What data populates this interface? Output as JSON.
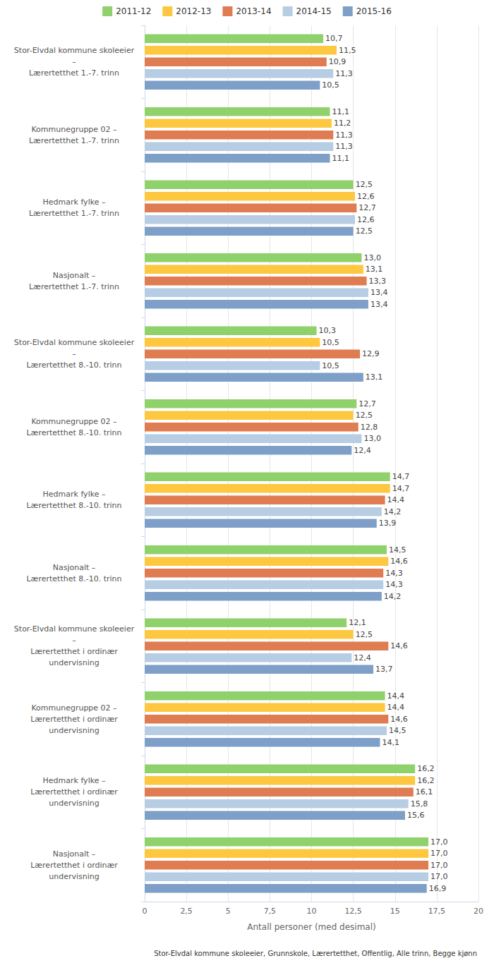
{
  "chart_data": {
    "type": "bar",
    "orientation": "horizontal",
    "grid": true,
    "legend": "top",
    "data_labels": true,
    "x_label": "Antall personer (med desimal)",
    "footnote": "Stor-Elvdal kommune skoleeier, Grunnskole, Lærertetthet, Offentlig, Alle trinn, Begge kjønn",
    "categories": [
      "Stor-Elvdal kommune skoleeier\n–\nLærertetthet 1.-7. trinn",
      "Kommunegruppe 02 –\nLærertetthet 1.-7. trinn",
      "Hedmark fylke –\nLærertetthet 1.-7. trinn",
      "Nasjonalt –\nLærertetthet 1.-7. trinn",
      "Stor-Elvdal kommune skoleeier\n–\nLærertetthet 8.-10. trinn",
      "Kommunegruppe 02 –\nLærertetthet 8.-10. trinn",
      "Hedmark fylke –\nLærertetthet 8.-10. trinn",
      "Nasjonalt –\nLærertetthet 8.-10. trinn",
      "Stor-Elvdal kommune skoleeier\n–\nLærertetthet i ordinær\nundervisning",
      "Kommunegruppe 02 –\nLærertetthet i ordinær\nundervisning",
      "Hedmark fylke –\nLærertetthet i ordinær\nundervisning",
      "Nasjonalt –\nLærertetthet i ordinær\nundervisning"
    ],
    "xlim": [
      0,
      20
    ],
    "xticks": [
      0,
      {
        "value": 2.5,
        "label": "2,5"
      },
      5,
      {
        "value": 7.5,
        "label": "7,5"
      },
      10,
      {
        "value": 12.5,
        "label": "12,5"
      },
      15,
      {
        "value": 17.5,
        "label": "17,5"
      },
      20
    ],
    "series": [
      {
        "name": "2011-12",
        "color": "#8fd16a",
        "values": [
          10.7,
          11.1,
          12.5,
          13.0,
          10.3,
          12.7,
          14.7,
          14.5,
          12.1,
          14.4,
          16.2,
          17.0
        ],
        "value_labels": [
          "10,7",
          "11,1",
          "12,5",
          "13,0",
          "10,3",
          "12,7",
          "14,7",
          "14,5",
          "12,1",
          "14,4",
          "16,2",
          "17,0"
        ]
      },
      {
        "name": "2012-13",
        "color": "#fdc73f",
        "values": [
          11.5,
          11.2,
          12.6,
          13.1,
          10.5,
          12.5,
          14.7,
          14.6,
          12.5,
          14.4,
          16.2,
          17.0
        ],
        "value_labels": [
          "11,5",
          "11,2",
          "12,6",
          "13,1",
          "10,5",
          "12,5",
          "14,7",
          "14,6",
          "12,5",
          "14,4",
          "16,2",
          "17,0"
        ]
      },
      {
        "name": "2013-14",
        "color": "#df7c52",
        "values": [
          10.9,
          11.3,
          12.7,
          13.3,
          12.9,
          12.8,
          14.4,
          14.3,
          14.6,
          14.6,
          16.1,
          17.0
        ],
        "value_labels": [
          "10,9",
          "11,3",
          "12,7",
          "13,3",
          "12,9",
          "12,8",
          "14,4",
          "14,3",
          "14,6",
          "14,6",
          "16,1",
          "17,0"
        ]
      },
      {
        "name": "2014-15",
        "color": "#b6cde3",
        "values": [
          11.3,
          11.3,
          12.6,
          13.4,
          10.5,
          13.0,
          14.2,
          14.3,
          12.4,
          14.5,
          15.8,
          17.0
        ],
        "value_labels": [
          "11,3",
          "11,3",
          "12,6",
          "13,4",
          "10,5",
          "13,0",
          "14,2",
          "14,3",
          "12,4",
          "14,5",
          "15,8",
          "17,0"
        ]
      },
      {
        "name": "2015-16",
        "color": "#7d9fc8",
        "values": [
          10.5,
          11.1,
          12.5,
          13.4,
          13.1,
          12.4,
          13.9,
          14.2,
          13.7,
          14.1,
          15.6,
          16.9
        ],
        "value_labels": [
          "10,5",
          "11,1",
          "12,5",
          "13,4",
          "13,1",
          "12,4",
          "13,9",
          "14,2",
          "13,7",
          "14,1",
          "15,6",
          "16,9"
        ]
      }
    ]
  }
}
